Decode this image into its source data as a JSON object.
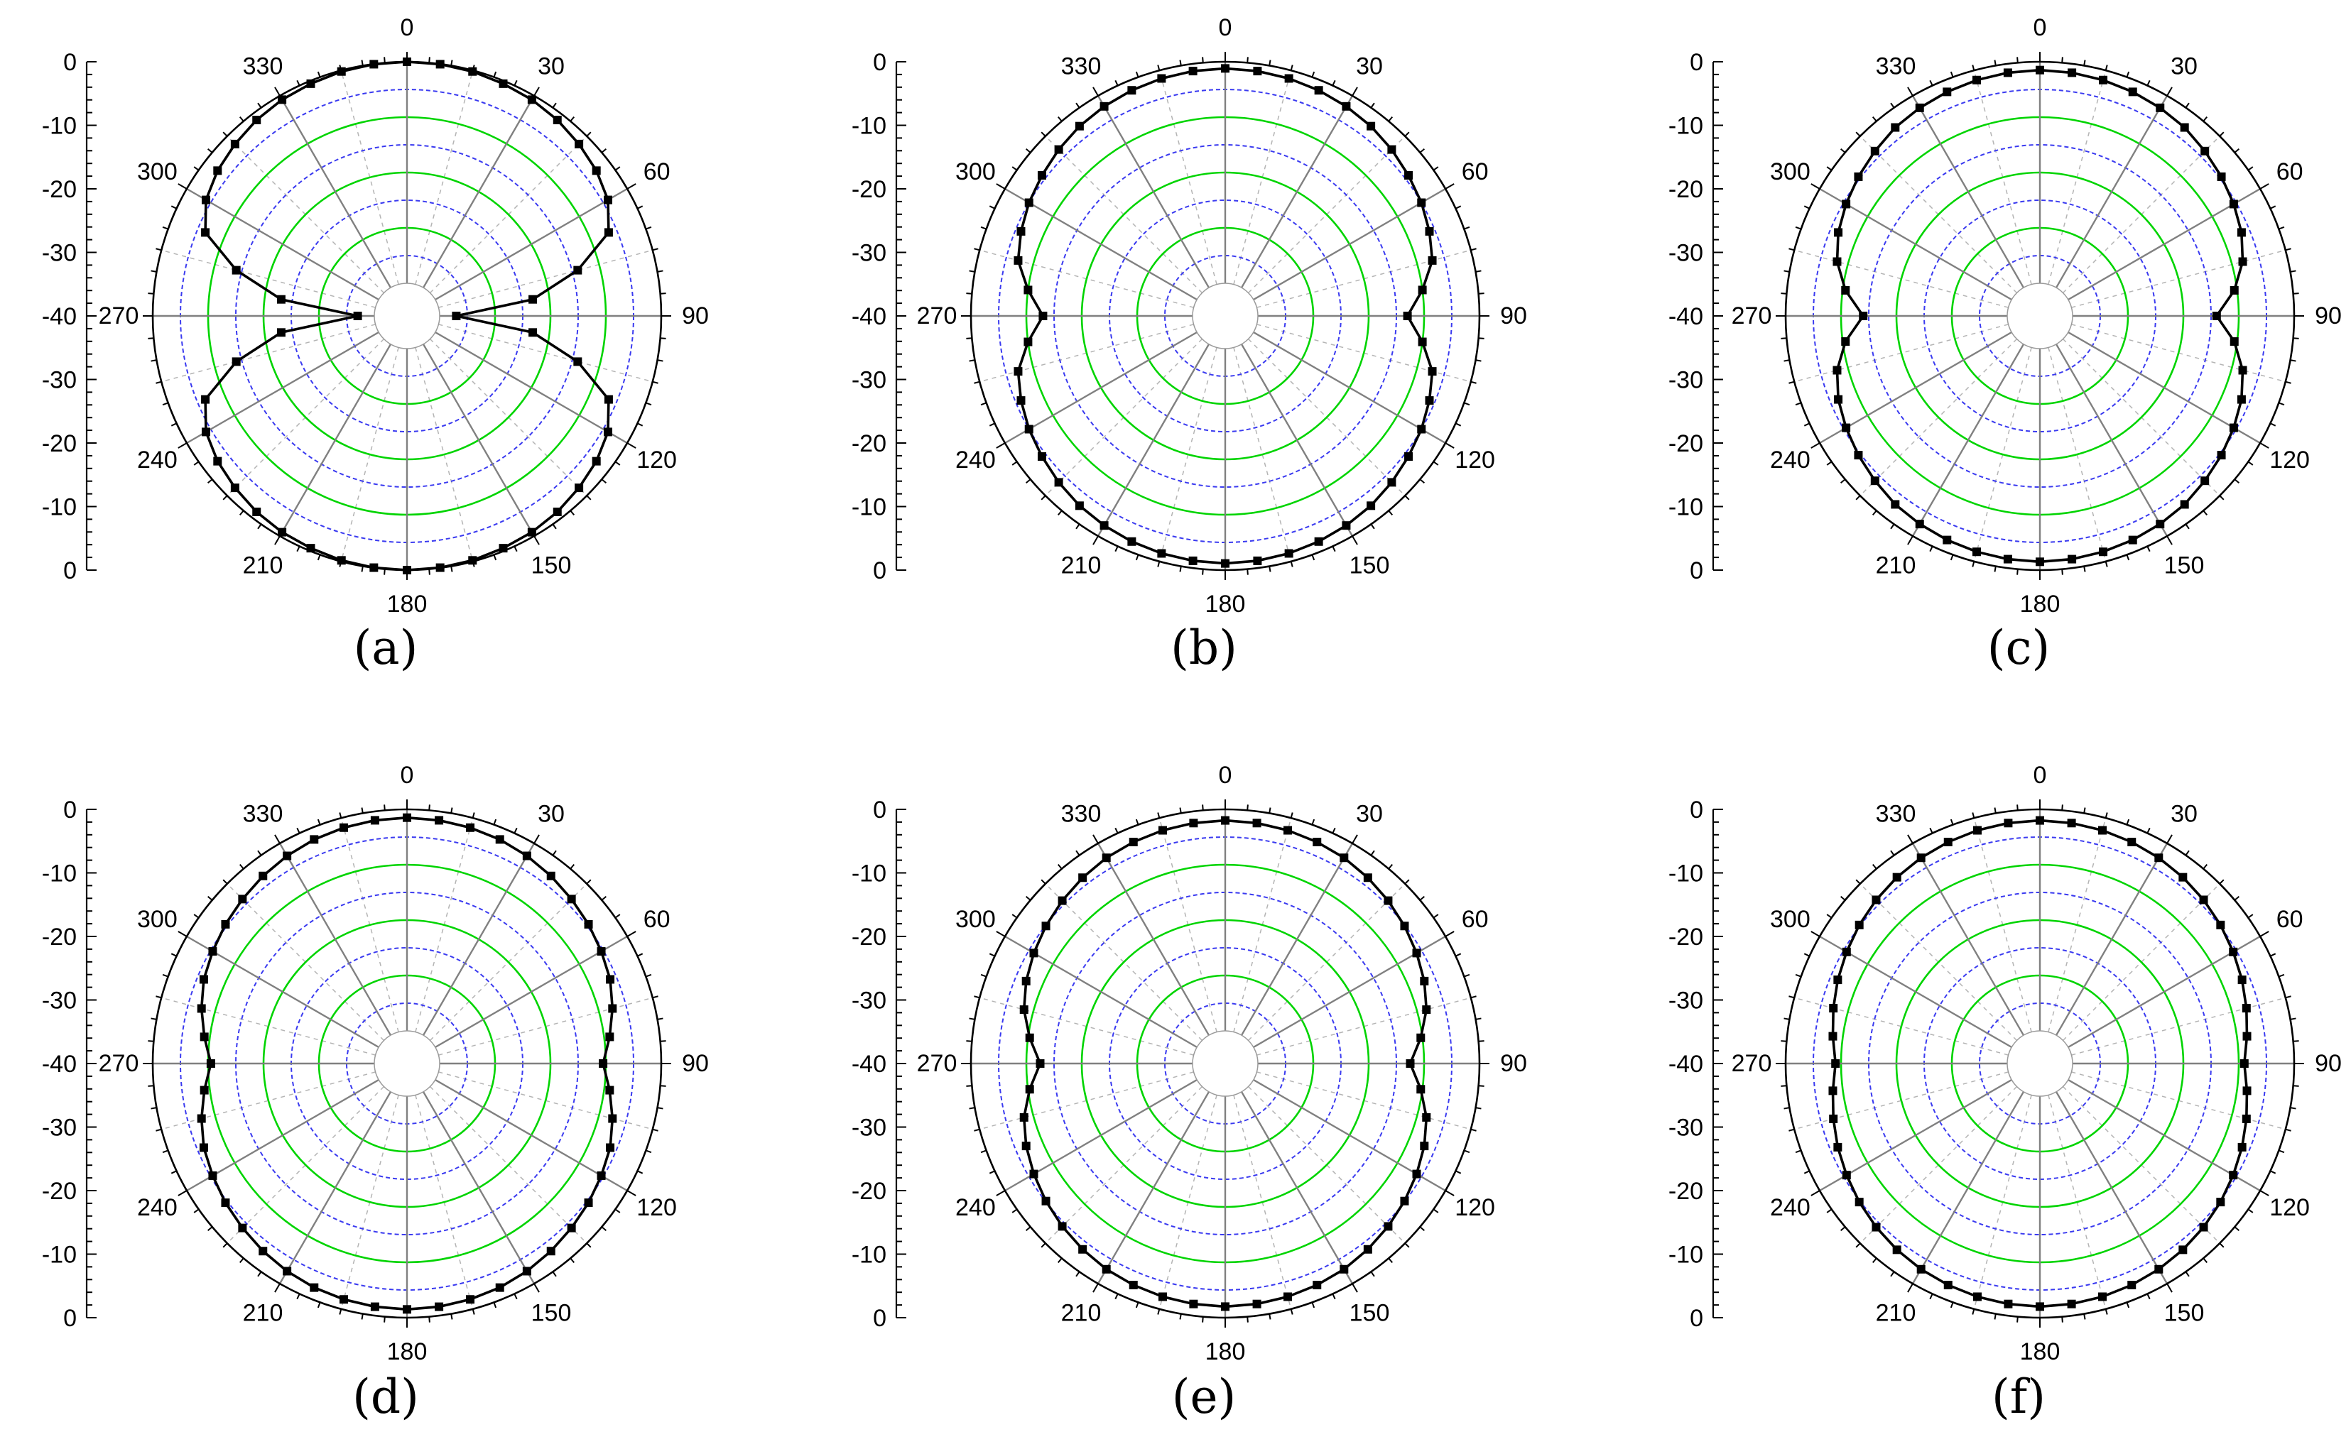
{
  "colors": {
    "pattern": "#000000",
    "marker": "#000000",
    "major_ring": "#00d400",
    "minor_ring": "#3a3af0",
    "spoke": "#808080",
    "minor_spoke": "#b4b4b4",
    "axis": "#000000"
  },
  "chart_data": [
    {
      "type": "polar",
      "label": "(a)",
      "angle_ticks": [
        "0",
        "30",
        "60",
        "90",
        "120",
        "150",
        "180",
        "210",
        "240",
        "270",
        "300",
        "330"
      ],
      "radial_ticks": [
        "0",
        "-10",
        "-20",
        "-30",
        "-40",
        "-30",
        "-20",
        "-10",
        "0"
      ],
      "rlim": [
        -40,
        0
      ],
      "angle_step_deg": 7.5,
      "curve": {
        "theta": [
          0,
          7.5,
          15,
          22.5,
          30,
          37.5,
          45,
          52.5,
          60,
          67.5,
          75,
          82.5,
          90,
          97.5,
          105,
          112.5,
          120,
          127.5,
          135,
          142.5,
          150,
          157.5,
          165,
          172.5,
          180,
          187.5,
          195,
          202.5,
          210,
          217.5,
          225,
          232.5,
          240,
          247.5,
          255,
          262.5,
          270,
          277.5,
          285,
          292.5,
          300,
          307.5,
          315,
          322.5,
          330,
          337.5,
          345,
          352.5
        ],
        "r": [
          0,
          -0.05,
          -0.2,
          -0.5,
          -0.8,
          -1.3,
          -2.0,
          -2.8,
          -4.0,
          -6.5,
          -14,
          -23,
          -37,
          -23,
          -14,
          -6.5,
          -4.0,
          -2.8,
          -2.0,
          -1.3,
          -0.8,
          -0.5,
          -0.2,
          -0.05,
          0,
          -0.05,
          -0.2,
          -0.5,
          -0.8,
          -1.3,
          -2.0,
          -2.8,
          -4.0,
          -6.5,
          -14,
          -23,
          -37,
          -23,
          -14,
          -6.5,
          -4.0,
          -2.8,
          -2.0,
          -1.3,
          -0.8,
          -0.5,
          -0.2,
          -0.05
        ]
      }
    },
    {
      "type": "polar",
      "label": "(b)",
      "angle_ticks": [
        "0",
        "30",
        "60",
        "90",
        "120",
        "150",
        "180",
        "210",
        "240",
        "270",
        "300",
        "330"
      ],
      "radial_ticks": [
        "0",
        "-10",
        "-20",
        "-30",
        "-40",
        "-30",
        "-20",
        "-10",
        "0"
      ],
      "rlim": [
        -40,
        0
      ],
      "angle_step_deg": 7.5,
      "curve": {
        "theta": [
          0,
          7.5,
          15,
          22.5,
          30,
          37.5,
          45,
          52.5,
          60,
          67.5,
          75,
          82.5,
          90,
          97.5,
          105,
          112.5,
          120,
          127.5,
          135,
          142.5,
          150,
          157.5,
          165,
          172.5,
          180,
          187.5,
          195,
          202.5,
          210,
          217.5,
          225,
          232.5,
          240,
          247.5,
          255,
          262.5,
          270,
          277.5,
          285,
          292.5,
          300,
          307.5,
          315,
          322.5,
          330,
          337.5,
          345,
          352.5
        ],
        "r": [
          -1.2,
          -1.3,
          -1.5,
          -1.8,
          -2.2,
          -2.7,
          -3.4,
          -4.2,
          -5.0,
          -6.0,
          -7.2,
          -10.0,
          -13.0,
          -10.0,
          -7.2,
          -6.0,
          -5.0,
          -4.2,
          -3.4,
          -2.7,
          -2.2,
          -1.8,
          -1.5,
          -1.3,
          -1.2,
          -1.3,
          -1.5,
          -1.8,
          -2.2,
          -2.7,
          -3.4,
          -4.2,
          -5.0,
          -6.0,
          -7.2,
          -10.0,
          -13.0,
          -10.0,
          -7.2,
          -6.0,
          -5.0,
          -4.2,
          -3.4,
          -2.7,
          -2.2,
          -1.8,
          -1.5,
          -1.3
        ]
      }
    },
    {
      "type": "polar",
      "label": "(c)",
      "angle_ticks": [
        "0",
        "30",
        "60",
        "90",
        "120",
        "150",
        "180",
        "210",
        "240",
        "270",
        "300",
        "330"
      ],
      "radial_ticks": [
        "0",
        "-10",
        "-20",
        "-30",
        "-40",
        "-30",
        "-20",
        "-10",
        "0"
      ],
      "rlim": [
        -40,
        0
      ],
      "angle_step_deg": 7.5,
      "curve": {
        "theta": [
          0,
          7.5,
          15,
          22.5,
          30,
          37.5,
          45,
          52.5,
          60,
          67.5,
          75,
          82.5,
          90,
          97.5,
          105,
          112.5,
          120,
          127.5,
          135,
          142.5,
          150,
          157.5,
          165,
          172.5,
          180,
          187.5,
          195,
          202.5,
          210,
          217.5,
          225,
          232.5,
          240,
          247.5,
          255,
          262.5,
          270,
          277.5,
          285,
          292.5,
          300,
          307.5,
          315,
          322.5,
          330,
          337.5,
          345,
          352.5
        ],
        "r": [
          -1.5,
          -1.6,
          -1.8,
          -2.1,
          -2.5,
          -3.0,
          -3.8,
          -4.6,
          -5.5,
          -6.5,
          -8.0,
          -10.5,
          -14.0,
          -10.5,
          -8.0,
          -6.5,
          -5.5,
          -4.6,
          -3.8,
          -3.0,
          -2.5,
          -2.1,
          -1.8,
          -1.6,
          -1.5,
          -1.6,
          -1.8,
          -2.1,
          -2.5,
          -3.0,
          -3.8,
          -4.6,
          -5.5,
          -6.5,
          -8.0,
          -10.5,
          -14.0,
          -10.5,
          -8.0,
          -6.5,
          -5.5,
          -4.6,
          -3.8,
          -3.0,
          -2.5,
          -2.1,
          -1.8,
          -1.6
        ]
      }
    },
    {
      "type": "polar",
      "label": "(d)",
      "angle_ticks": [
        "0",
        "30",
        "60",
        "90",
        "120",
        "150",
        "180",
        "210",
        "240",
        "270",
        "300",
        "330"
      ],
      "radial_ticks": [
        "0",
        "-10",
        "-20",
        "-30",
        "-40",
        "-30",
        "-20",
        "-10",
        "0"
      ],
      "rlim": [
        -40,
        0
      ],
      "angle_step_deg": 7.5,
      "curve": {
        "theta": [
          0,
          7.5,
          15,
          22.5,
          30,
          37.5,
          45,
          52.5,
          60,
          67.5,
          75,
          82.5,
          90,
          97.5,
          105,
          112.5,
          120,
          127.5,
          135,
          142.5,
          150,
          157.5,
          165,
          172.5,
          180,
          187.5,
          195,
          202.5,
          210,
          217.5,
          225,
          232.5,
          240,
          247.5,
          255,
          262.5,
          270,
          277.5,
          285,
          292.5,
          300,
          307.5,
          315,
          322.5,
          330,
          337.5,
          345,
          352.5
        ],
        "r": [
          -1.5,
          -1.6,
          -1.8,
          -2.1,
          -2.6,
          -3.2,
          -3.9,
          -4.6,
          -5.4,
          -6.2,
          -7.5,
          -9.0,
          -10.5,
          -9.0,
          -7.5,
          -6.2,
          -5.4,
          -4.6,
          -3.9,
          -3.2,
          -2.6,
          -2.1,
          -1.8,
          -1.6,
          -1.5,
          -1.6,
          -1.8,
          -2.1,
          -2.6,
          -3.2,
          -3.9,
          -4.6,
          -5.4,
          -6.2,
          -7.5,
          -9.0,
          -10.5,
          -9.0,
          -7.5,
          -6.2,
          -5.4,
          -4.6,
          -3.9,
          -3.2,
          -2.6,
          -2.1,
          -1.8,
          -1.6
        ]
      }
    },
    {
      "type": "polar",
      "label": "(e)",
      "angle_ticks": [
        "0",
        "30",
        "60",
        "90",
        "120",
        "150",
        "180",
        "210",
        "240",
        "270",
        "300",
        "330"
      ],
      "radial_ticks": [
        "0",
        "-10",
        "-20",
        "-30",
        "-40",
        "-30",
        "-20",
        "-10",
        "0"
      ],
      "rlim": [
        -40,
        0
      ],
      "angle_step_deg": 7.5,
      "curve": {
        "theta": [
          0,
          7.5,
          15,
          22.5,
          30,
          37.5,
          45,
          52.5,
          60,
          67.5,
          75,
          82.5,
          90,
          97.5,
          105,
          112.5,
          120,
          127.5,
          135,
          142.5,
          150,
          157.5,
          165,
          172.5,
          180,
          187.5,
          195,
          202.5,
          210,
          217.5,
          225,
          232.5,
          240,
          247.5,
          255,
          262.5,
          270,
          277.5,
          285,
          292.5,
          300,
          307.5,
          315,
          322.5,
          330,
          337.5,
          345,
          352.5
        ],
        "r": [
          -2.0,
          -2.1,
          -2.3,
          -2.6,
          -3.0,
          -3.6,
          -4.3,
          -5.1,
          -6.0,
          -7.0,
          -8.3,
          -10.3,
          -12.5,
          -10.3,
          -8.3,
          -7.0,
          -6.0,
          -5.1,
          -4.3,
          -3.6,
          -3.0,
          -2.6,
          -2.3,
          -2.1,
          -2.0,
          -2.1,
          -2.3,
          -2.6,
          -3.0,
          -3.6,
          -4.3,
          -5.1,
          -6.0,
          -7.0,
          -8.3,
          -10.3,
          -12.5,
          -10.3,
          -8.3,
          -7.0,
          -6.0,
          -5.1,
          -4.3,
          -3.6,
          -3.0,
          -2.6,
          -2.3,
          -2.1
        ]
      }
    },
    {
      "type": "polar",
      "label": "(f)",
      "angle_ticks": [
        "0",
        "30",
        "60",
        "90",
        "120",
        "150",
        "180",
        "210",
        "240",
        "270",
        "300",
        "330"
      ],
      "radial_ticks": [
        "0",
        "-10",
        "-20",
        "-30",
        "-40",
        "-30",
        "-20",
        "-10",
        "0"
      ],
      "rlim": [
        -40,
        0
      ],
      "angle_step_deg": 7.5,
      "curve": {
        "theta": [
          0,
          7.5,
          15,
          22.5,
          30,
          37.5,
          45,
          52.5,
          60,
          67.5,
          75,
          82.5,
          90,
          97.5,
          105,
          112.5,
          120,
          127.5,
          135,
          142.5,
          150,
          157.5,
          165,
          172.5,
          180,
          187.5,
          195,
          202.5,
          210,
          217.5,
          225,
          232.5,
          240,
          247.5,
          255,
          262.5,
          270,
          277.5,
          285,
          292.5,
          300,
          307.5,
          315,
          322.5,
          330,
          337.5,
          345,
          352.5
        ],
        "r": [
          -2.0,
          -2.1,
          -2.3,
          -2.6,
          -3.0,
          -3.5,
          -4.1,
          -4.8,
          -5.6,
          -6.4,
          -7.3,
          -8.2,
          -9.0,
          -8.2,
          -7.3,
          -6.4,
          -5.6,
          -4.8,
          -4.1,
          -3.5,
          -3.0,
          -2.6,
          -2.3,
          -2.1,
          -2.0,
          -2.1,
          -2.3,
          -2.6,
          -3.0,
          -3.5,
          -4.1,
          -4.8,
          -5.6,
          -6.4,
          -7.3,
          -8.2,
          -9.0,
          -8.2,
          -7.3,
          -6.4,
          -5.6,
          -4.8,
          -4.1,
          -3.5,
          -3.0,
          -2.6,
          -2.3,
          -2.1
        ]
      }
    }
  ]
}
